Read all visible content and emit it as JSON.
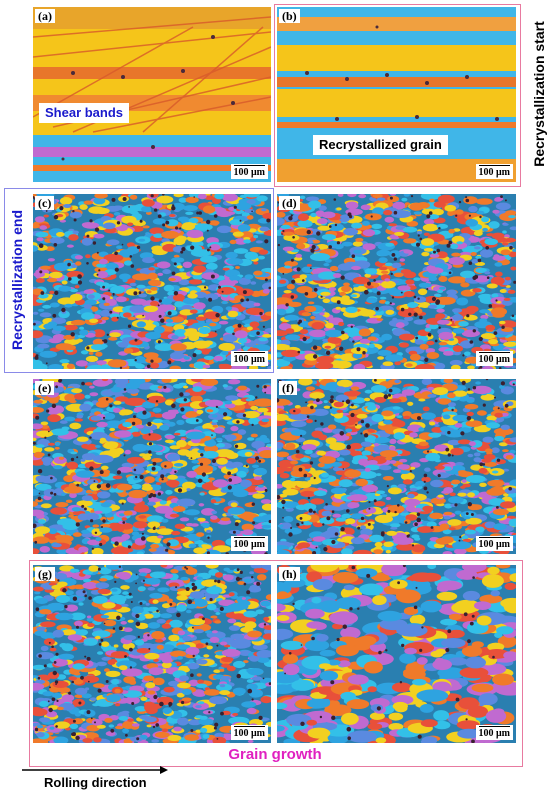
{
  "panels": [
    {
      "label": "(a)",
      "scale_bar": "100 μm"
    },
    {
      "label": "(b)",
      "scale_bar": "100 μm"
    },
    {
      "label": "(c)",
      "scale_bar": "100 μm"
    },
    {
      "label": "(d)",
      "scale_bar": "100 μm"
    },
    {
      "label": "(e)",
      "scale_bar": "100 μm"
    },
    {
      "label": "(f)",
      "scale_bar": "100 μm"
    },
    {
      "label": "(g)",
      "scale_bar": "100 μm"
    },
    {
      "label": "(h)",
      "scale_bar": "100 μm"
    }
  ],
  "annotations": {
    "shear_bands": "Shear bands",
    "recrystallized_grain": "Recrystallized grain",
    "recrystallization_start": "Recrystallization start",
    "recrystallization_end": "Recrystallization end",
    "grain_growth": "Grain growth",
    "rolling_direction": "Rolling direction"
  },
  "colors": {
    "start_frame": "#e87aa0",
    "end_frame": "#8a8ae8",
    "growth_frame": "#e87aa0",
    "shear_text": "#1a1acc",
    "end_text": "#1a1acc",
    "growth_text": "#e020c0",
    "grain_palette": [
      "#2ea3e0",
      "#f07a2a",
      "#c06ad0",
      "#f2d020",
      "#5a8ae0",
      "#e8503a",
      "#33c0e8"
    ]
  }
}
